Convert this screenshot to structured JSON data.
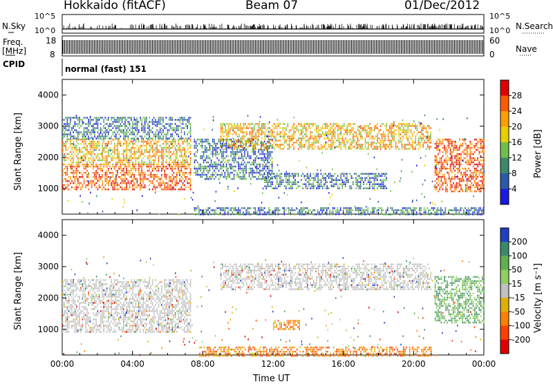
{
  "header": {
    "station": "Hokkaido (fitACF)",
    "beam": "Beam 07",
    "date": "01/Dec/2012"
  },
  "top_panels": {
    "nsky_label": "N.Sky",
    "nsky_ticks": [
      "10^5",
      "10^0"
    ],
    "nsearch_label": "N.Search",
    "nsearch_ticks": [
      "10^5",
      "10^0"
    ],
    "freq_label": "Freq.",
    "freq_unit": "[MHz]",
    "freq_ticks": [
      "18",
      "8"
    ],
    "nave_label": "Nave",
    "nave_ticks": [
      "60",
      "0"
    ],
    "cpid_label": "CPID",
    "cpid_value": "normal (fast) 151"
  },
  "chart_data": [
    {
      "type": "heatmap",
      "panel": "power",
      "ylabel": "Slant Range [km]",
      "ylim": [
        180,
        4500
      ],
      "yticks": [
        "4000",
        "3000",
        "2000",
        "1000"
      ],
      "xlim_hours": [
        0,
        24
      ],
      "colorbar_label": "Power [dB]",
      "colorbar_ticks": [
        "28",
        "24",
        "20",
        "16",
        "12",
        "8",
        "4"
      ],
      "colorscale": [
        "#e00000",
        "#ff5a00",
        "#ff9f00",
        "#e8d000",
        "#6ec04a",
        "#3a8a6a",
        "#2a5aa8",
        "#1a1ae0"
      ],
      "regions": [
        {
          "t": [
            0.0,
            7.3
          ],
          "range": [
            1000,
            1800
          ],
          "level": "high"
        },
        {
          "t": [
            0.0,
            7.3
          ],
          "range": [
            1800,
            2600
          ],
          "level": "mid"
        },
        {
          "t": [
            0.0,
            7.3
          ],
          "range": [
            2600,
            3300
          ],
          "level": "low"
        },
        {
          "t": [
            7.5,
            12.0
          ],
          "range": [
            1300,
            2600
          ],
          "level": "low"
        },
        {
          "t": [
            9.0,
            21.0
          ],
          "range": [
            2300,
            3100
          ],
          "level": "mid"
        },
        {
          "t": [
            11.5,
            18.5
          ],
          "range": [
            1000,
            1500
          ],
          "level": "low"
        },
        {
          "t": [
            21.2,
            24.0
          ],
          "range": [
            900,
            2600
          ],
          "level": "high"
        },
        {
          "t": [
            7.5,
            24.0
          ],
          "range": [
            180,
            400
          ],
          "level": "low"
        }
      ]
    },
    {
      "type": "heatmap",
      "panel": "velocity",
      "ylabel": "Slant Range [km]",
      "xlabel": "Time UT",
      "ylim": [
        180,
        4500
      ],
      "yticks": [
        "4000",
        "3000",
        "2000",
        "1000"
      ],
      "xticks": [
        "00:00",
        "04:00",
        "08:00",
        "12:00",
        "16:00",
        "20:00",
        "00:00"
      ],
      "xlim_hours": [
        0,
        24
      ],
      "colorbar_label": "Velocity [m s⁻¹]",
      "colorbar_ticks": [
        "200",
        "100",
        "50",
        "15",
        "-15",
        "-50",
        "-100",
        "-200"
      ],
      "colorscale": [
        "#2040c0",
        "#3a8a6a",
        "#60b050",
        "#90d060",
        "#c0c0c0",
        "#e0b000",
        "#ff8000",
        "#ff4000",
        "#e00000"
      ],
      "regions": [
        {
          "t": [
            0.0,
            7.3
          ],
          "range": [
            900,
            2600
          ],
          "level": "near-zero"
        },
        {
          "t": [
            9.0,
            21.0
          ],
          "range": [
            2300,
            3100
          ],
          "level": "near-zero"
        },
        {
          "t": [
            12.0,
            13.5
          ],
          "range": [
            1000,
            1300
          ],
          "level": "negative"
        },
        {
          "t": [
            7.8,
            21.0
          ],
          "range": [
            180,
            450
          ],
          "level": "negative"
        },
        {
          "t": [
            21.2,
            24.0
          ],
          "range": [
            1200,
            2700
          ],
          "level": "positive"
        }
      ]
    }
  ]
}
